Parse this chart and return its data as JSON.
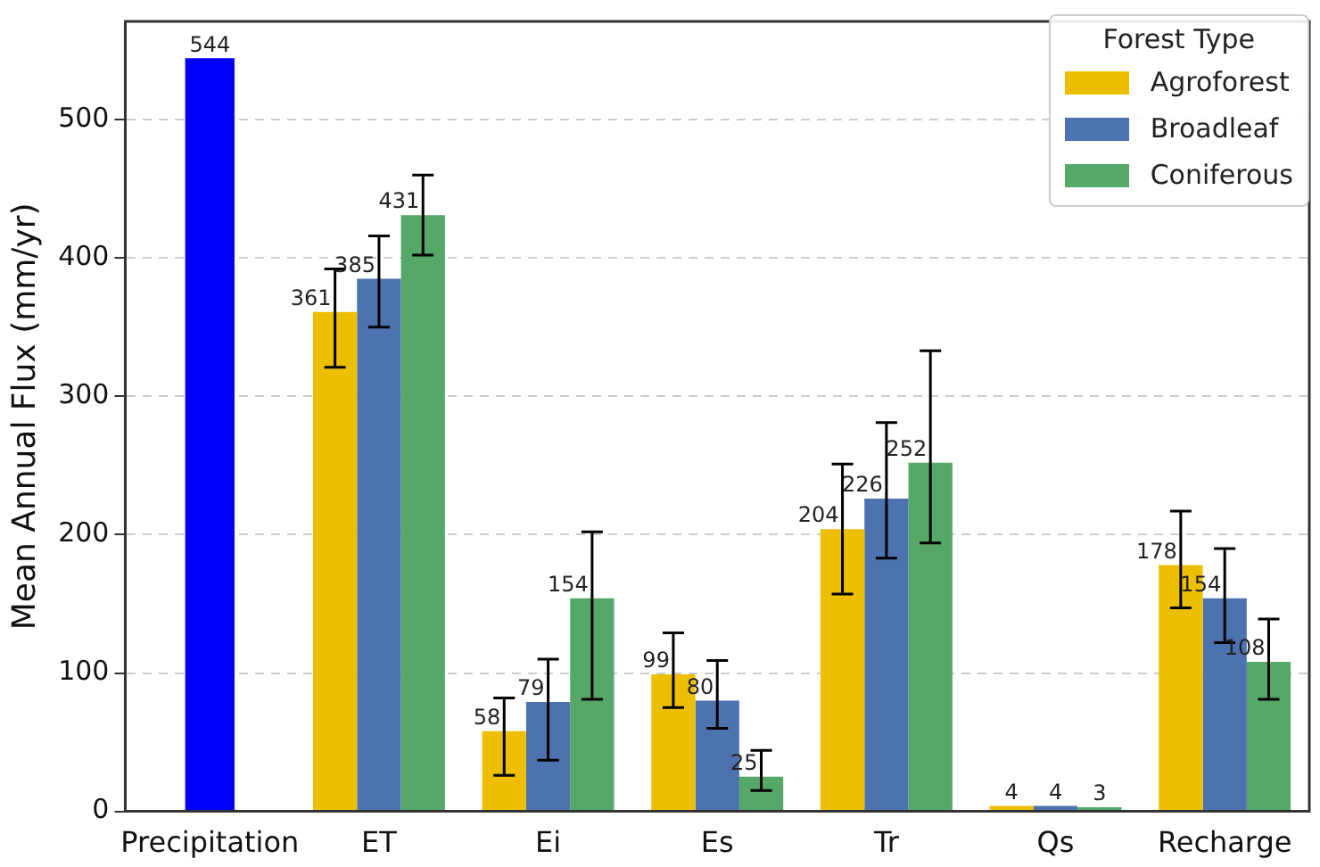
{
  "chart_data": {
    "type": "bar",
    "ylabel": "Mean Annual Flux (mm/yr)",
    "legend_title": "Forest Type",
    "categories": [
      "Precipitation",
      "ET",
      "Ei",
      "Es",
      "Tr",
      "Qs",
      "Recharge"
    ],
    "series": [
      {
        "color": "#0000ff",
        "values": [
          544,
          null,
          null,
          null,
          null,
          null,
          null
        ]
      },
      {
        "name": "Agroforest",
        "color": "#eebf00",
        "values": [
          null,
          361,
          58,
          99,
          204,
          4,
          178
        ],
        "errors": [
          null,
          [
            321,
            392
          ],
          [
            26,
            82
          ],
          [
            75,
            129
          ],
          [
            157,
            251
          ],
          null,
          [
            147,
            217
          ]
        ]
      },
      {
        "name": "Broadleaf",
        "color": "#4c72b0",
        "values": [
          null,
          385,
          79,
          80,
          226,
          4,
          154
        ],
        "errors": [
          null,
          [
            350,
            416
          ],
          [
            37,
            110
          ],
          [
            60,
            109
          ],
          [
            183,
            281
          ],
          null,
          [
            122,
            190
          ]
        ]
      },
      {
        "name": "Coniferous",
        "color": "#55a868",
        "values": [
          null,
          431,
          154,
          25,
          252,
          3,
          108
        ],
        "errors": [
          null,
          [
            402,
            460
          ],
          [
            81,
            202
          ],
          [
            15,
            44
          ],
          [
            194,
            333
          ],
          null,
          [
            81,
            139
          ]
        ]
      }
    ],
    "ylim": [
      0,
      571
    ],
    "yticks": [
      0,
      100,
      200,
      300,
      400,
      500
    ],
    "grid": "y",
    "legend": "top right",
    "data_labels": true
  }
}
